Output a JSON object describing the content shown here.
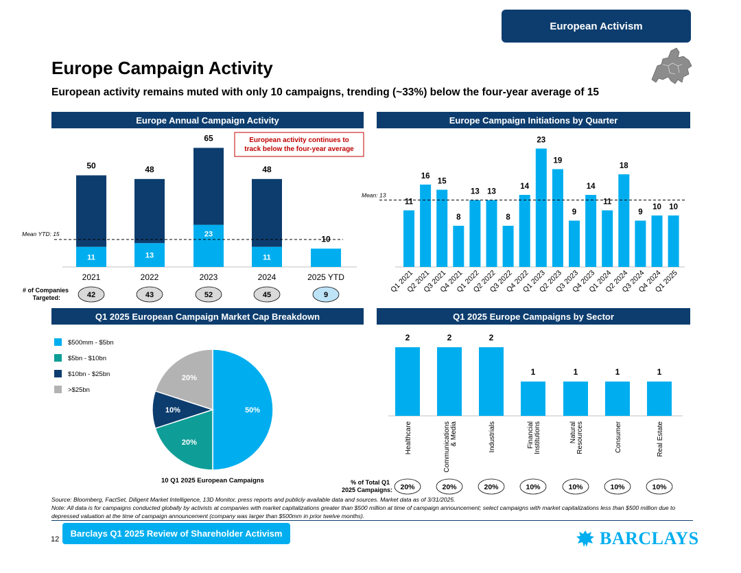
{
  "header": {
    "tag": "European Activism",
    "title": "Europe Campaign Activity",
    "subtitle": "European activity remains muted with only 10 campaigns, trending (~33%) below the four-year average of 15"
  },
  "colors": {
    "navy": "#0d3d6e",
    "cyan": "#00aeef",
    "teal": "#0f9e97",
    "grey": "#b3b3b3",
    "red": "#c00000"
  },
  "panels": {
    "annual": "Europe Annual Campaign Activity",
    "quarterly": "Europe Campaign Initiations by Quarter",
    "marketcap": "Q1 2025 European Campaign Market Cap Breakdown",
    "sector": "Q1 2025 Europe Campaigns by Sector"
  },
  "chart_data": [
    {
      "type": "bar",
      "title": "Europe Annual Campaign Activity",
      "categories": [
        "2021",
        "2022",
        "2023",
        "2024",
        "2025 YTD"
      ],
      "totals": [
        50,
        48,
        65,
        48,
        10
      ],
      "series": [
        {
          "values": [
            11,
            13,
            23,
            11,
            10
          ]
        },
        {
          "values": [
            39,
            35,
            42,
            37,
            0
          ]
        }
      ],
      "segment_labels": [
        "11",
        "13",
        "23",
        "11"
      ],
      "mean_label": "Mean YTD: 15",
      "mean_value": 15,
      "callout": "European activity continues to track below the four-year average",
      "companies_label": "# of Companies Targeted:",
      "companies": [
        "42",
        "43",
        "52",
        "45",
        "9"
      ]
    },
    {
      "type": "bar",
      "title": "Europe Campaign Initiations by Quarter",
      "categories": [
        "Q1 2021",
        "Q2 2021",
        "Q3 2021",
        "Q4 2021",
        "Q1 2022",
        "Q2 2022",
        "Q3 2022",
        "Q4 2022",
        "Q1 2023",
        "Q2 2023",
        "Q3 2023",
        "Q4 2023",
        "Q1 2024",
        "Q2 2024",
        "Q3 2024",
        "Q4 2024",
        "Q1 2025"
      ],
      "values": [
        11,
        16,
        15,
        8,
        13,
        13,
        8,
        14,
        23,
        19,
        9,
        14,
        11,
        18,
        9,
        10,
        10
      ],
      "mean_label": "Mean: 13",
      "mean_value": 13
    },
    {
      "type": "pie",
      "title": "Q1 2025 European Campaign Market Cap Breakdown",
      "caption": "10 Q1 2025 European Campaigns",
      "legend": [
        "$500mm - $5bn",
        "$5bn - $10bn",
        "$10bn - $25bn",
        ">$25bn"
      ],
      "values": [
        50,
        20,
        10,
        20
      ],
      "labels": [
        "50%",
        "20%",
        "10%",
        "20%"
      ]
    },
    {
      "type": "bar",
      "title": "Q1 2025 Europe Campaigns by Sector",
      "categories": [
        "Healthcare",
        "Communications & Media",
        "Industrials",
        "Financial Institutions",
        "Natural Resources",
        "Consumer",
        "Real Estate"
      ],
      "category_lines": [
        [
          "Healthcare"
        ],
        [
          "Communications",
          "& Media"
        ],
        [
          "Industrials"
        ],
        [
          "Financial",
          "Institutions"
        ],
        [
          "Natural",
          "Resources"
        ],
        [
          "Consumer"
        ],
        [
          "Real Estate"
        ]
      ],
      "values": [
        2,
        2,
        2,
        1,
        1,
        1,
        1
      ],
      "pct_label": "% of Total Q1 2025 Campaigns:",
      "pct": [
        "20%",
        "20%",
        "20%",
        "10%",
        "10%",
        "10%",
        "10%"
      ]
    }
  ],
  "footer": {
    "source": "Source: Bloomberg, FactSet, Diligent Market Intelligence, 13D Monitor, press reports and publicly available data and sources. Market data as of 3/31/2025.",
    "note": "Note: All data is for campaigns conducted globally by activists at companies with market capitalizations greater than $500 million at time of campaign announcement; select campaigns with market capitalizations less than $500 million due to depressed valuation at the time of campaign announcement (company was larger than $500mm in prior twelve months).",
    "page_number": "12",
    "report_title": "Barclays Q1 2025 Review of Shareholder Activism",
    "brand": "BARCLAYS"
  }
}
